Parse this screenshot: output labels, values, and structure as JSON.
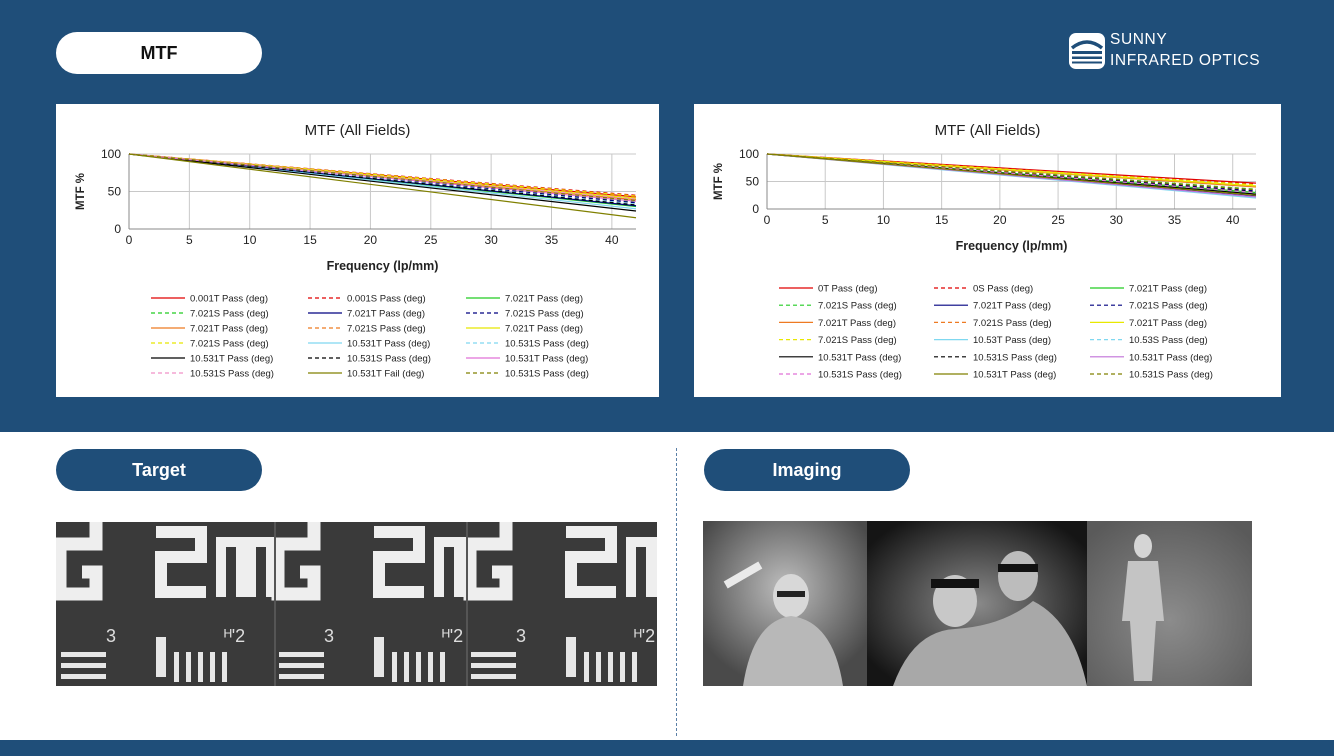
{
  "sections": {
    "mtf_label": "MTF",
    "target_label": "Target",
    "imaging_label": "Imaging"
  },
  "logo": {
    "line1": "SUNNY",
    "line2": "INFRARED OPTICS",
    "icon": "sunny-logo-icon"
  },
  "colors": {
    "band": "#1f4e79",
    "panel": "#ffffff",
    "grid": "#c8c8c8"
  },
  "chart_data": [
    {
      "type": "line",
      "title": "MTF (All Fields)",
      "xlabel": "Frequency (lp/mm)",
      "ylabel": "MTF %",
      "xlim": [
        0,
        42
      ],
      "ylim": [
        0,
        100
      ],
      "xticks": [
        0,
        5,
        10,
        15,
        20,
        25,
        30,
        35,
        40
      ],
      "yticks": [
        0,
        50,
        100
      ],
      "grid": true,
      "legend_position": "bottom",
      "legend_columns": 3,
      "x": [
        0,
        42
      ],
      "series": [
        {
          "name": "0.001T Pass (deg)",
          "color": "#e00000",
          "dash": false,
          "values": [
            100,
            43
          ]
        },
        {
          "name": "0.001S Pass (deg)",
          "color": "#e00000",
          "dash": true,
          "values": [
            100,
            45
          ]
        },
        {
          "name": "7.021T Pass (deg)",
          "color": "#22cc22",
          "dash": false,
          "values": [
            100,
            30
          ]
        },
        {
          "name": "7.021S Pass (deg)",
          "color": "#22cc22",
          "dash": true,
          "values": [
            100,
            36
          ]
        },
        {
          "name": "7.021T Pass (deg)",
          "color": "#000080",
          "dash": false,
          "values": [
            100,
            31
          ]
        },
        {
          "name": "7.021S Pass (deg)",
          "color": "#000080",
          "dash": true,
          "values": [
            100,
            35
          ]
        },
        {
          "name": "7.021T Pass (deg)",
          "color": "#ee7a22",
          "dash": false,
          "values": [
            100,
            39
          ]
        },
        {
          "name": "7.021S Pass (deg)",
          "color": "#ee7a22",
          "dash": true,
          "values": [
            100,
            42
          ]
        },
        {
          "name": "7.021T Pass (deg)",
          "color": "#e8e800",
          "dash": false,
          "values": [
            100,
            41
          ]
        },
        {
          "name": "7.021S Pass (deg)",
          "color": "#e8e800",
          "dash": true,
          "values": [
            100,
            44
          ]
        },
        {
          "name": "10.531T Pass (deg)",
          "color": "#7fd8f0",
          "dash": false,
          "values": [
            100,
            27
          ]
        },
        {
          "name": "10.531S Pass (deg)",
          "color": "#7fd8f0",
          "dash": true,
          "values": [
            100,
            33
          ]
        },
        {
          "name": "10.531T Pass (deg)",
          "color": "#000000",
          "dash": false,
          "values": [
            100,
            24
          ]
        },
        {
          "name": "10.531S Pass (deg)",
          "color": "#000000",
          "dash": true,
          "values": [
            100,
            32
          ]
        },
        {
          "name": "10.531T Pass (deg)",
          "color": "#e070d8",
          "dash": false,
          "values": [
            100,
            37
          ]
        },
        {
          "name": "10.531S Pass (deg)",
          "color": "#f090c8",
          "dash": true,
          "values": [
            100,
            40
          ]
        },
        {
          "name": "10.531T Fail (deg)",
          "color": "#808000",
          "dash": false,
          "values": [
            100,
            15
          ]
        },
        {
          "name": "10.531S Pass (deg)",
          "color": "#808000",
          "dash": true,
          "values": [
            100,
            38
          ]
        }
      ]
    },
    {
      "type": "line",
      "title": "MTF (All Fields)",
      "xlabel": "Frequency (lp/mm)",
      "ylabel": "MTF %",
      "xlim": [
        0,
        42
      ],
      "ylim": [
        0,
        100
      ],
      "xticks": [
        0,
        5,
        10,
        15,
        20,
        25,
        30,
        35,
        40
      ],
      "yticks": [
        0,
        50,
        100
      ],
      "grid": true,
      "legend_position": "bottom",
      "legend_columns": 3,
      "x": [
        0,
        42
      ],
      "series": [
        {
          "name": "0T Pass (deg)",
          "color": "#e00000",
          "dash": false,
          "values": [
            100,
            47
          ]
        },
        {
          "name": "0S Pass (deg)",
          "color": "#e00000",
          "dash": true,
          "values": [
            100,
            45
          ]
        },
        {
          "name": "7.021T Pass (deg)",
          "color": "#22cc22",
          "dash": false,
          "values": [
            100,
            30
          ]
        },
        {
          "name": "7.021S Pass (deg)",
          "color": "#22cc22",
          "dash": true,
          "values": [
            100,
            36
          ]
        },
        {
          "name": "7.021T Pass (deg)",
          "color": "#000080",
          "dash": false,
          "values": [
            100,
            24
          ]
        },
        {
          "name": "7.021S Pass (deg)",
          "color": "#000080",
          "dash": true,
          "values": [
            100,
            33
          ]
        },
        {
          "name": "7.021T Pass (deg)",
          "color": "#ee7a22",
          "dash": false,
          "values": [
            100,
            40
          ]
        },
        {
          "name": "7.021S Pass (deg)",
          "color": "#ee7a22",
          "dash": true,
          "values": [
            100,
            43
          ]
        },
        {
          "name": "7.021T Pass (deg)",
          "color": "#e8e800",
          "dash": false,
          "values": [
            100,
            42
          ]
        },
        {
          "name": "7.021S Pass (deg)",
          "color": "#e8e800",
          "dash": true,
          "values": [
            100,
            44
          ]
        },
        {
          "name": "10.53T Pass (deg)",
          "color": "#7fd8f0",
          "dash": false,
          "values": [
            100,
            20
          ]
        },
        {
          "name": "10.53S Pass (deg)",
          "color": "#7fd8f0",
          "dash": true,
          "values": [
            100,
            28
          ]
        },
        {
          "name": "10.531T Pass (deg)",
          "color": "#000000",
          "dash": false,
          "values": [
            100,
            27
          ]
        },
        {
          "name": "10.531S Pass (deg)",
          "color": "#000000",
          "dash": true,
          "values": [
            100,
            31
          ]
        },
        {
          "name": "10.531T Pass (deg)",
          "color": "#c070d8",
          "dash": false,
          "values": [
            100,
            22
          ]
        },
        {
          "name": "10.531S Pass (deg)",
          "color": "#e070d8",
          "dash": true,
          "values": [
            100,
            30
          ]
        },
        {
          "name": "10.531T Pass (deg)",
          "color": "#808000",
          "dash": false,
          "values": [
            100,
            25
          ]
        },
        {
          "name": "10.531S Pass (deg)",
          "color": "#808000",
          "dash": true,
          "values": [
            100,
            35
          ]
        }
      ]
    }
  ]
}
